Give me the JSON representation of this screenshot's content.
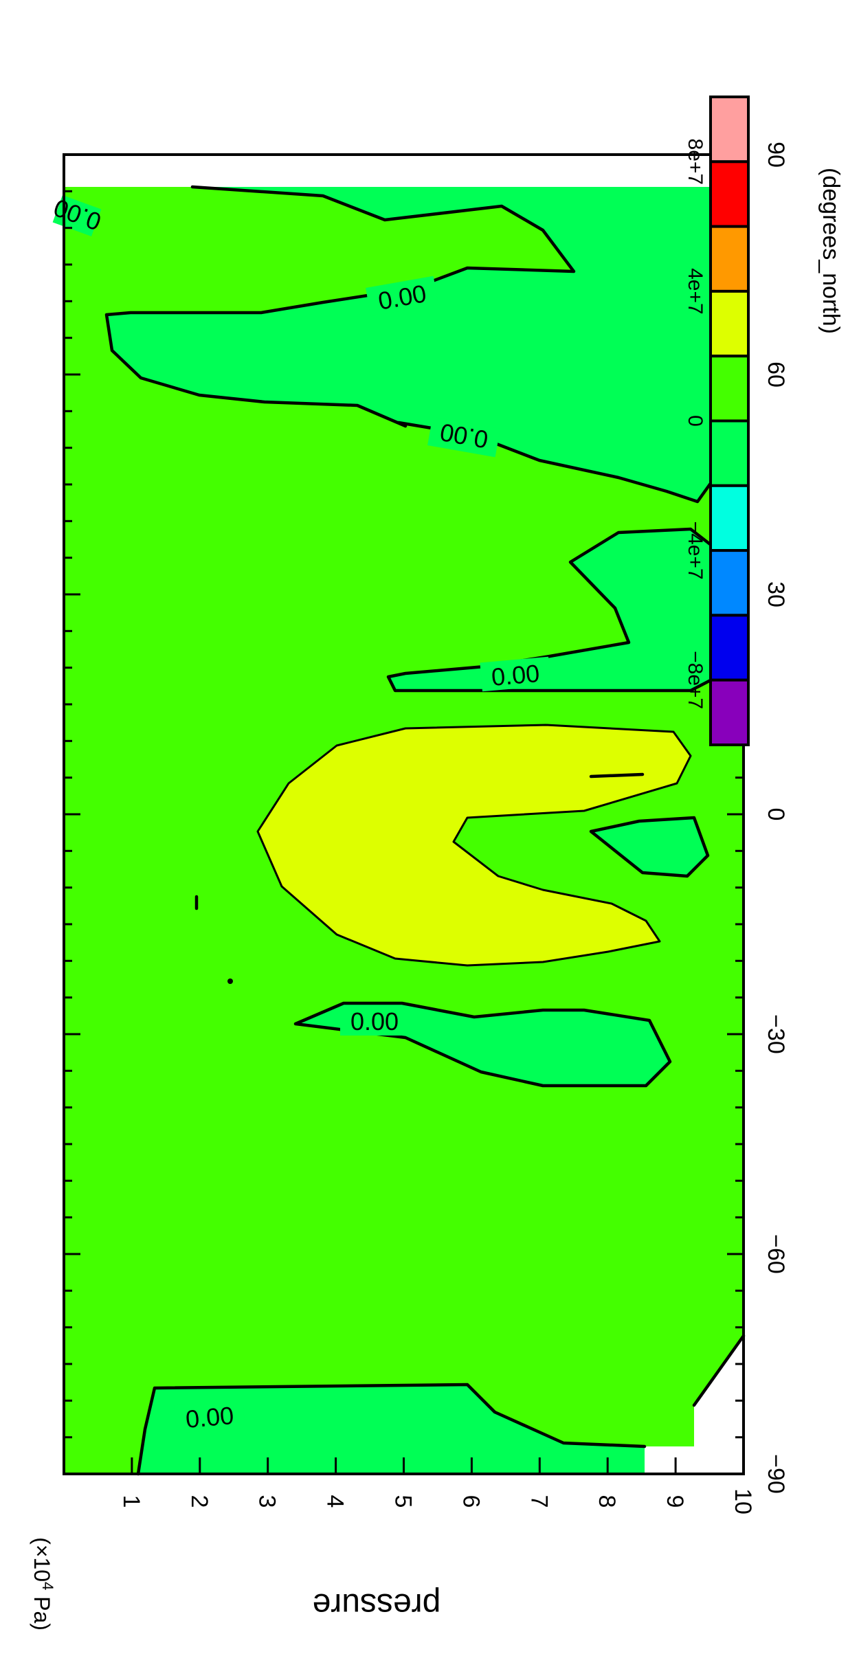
{
  "chart_data": {
    "type": "heatmap",
    "subtype": "filled-contour",
    "orientation": "rotated-90",
    "x_axis": {
      "label": "(degrees_north)",
      "ticks": [
        "−90",
        "−60",
        "−30",
        "0",
        "30",
        "60",
        "90"
      ],
      "range": [
        -90,
        90
      ]
    },
    "y_axis": {
      "label": "pressure",
      "unit_label": "(×10",
      "unit_exp": "4",
      "unit_tail": " Pa)",
      "ticks": [
        "1",
        "2",
        "3",
        "4",
        "5",
        "6",
        "7",
        "8",
        "9",
        "10"
      ],
      "range": [
        0,
        10
      ]
    },
    "colorbar": {
      "colors": [
        "#ff9f9f",
        "#ff0000",
        "#ff9900",
        "#ddff00",
        "#44ff00",
        "#00ff55",
        "#00ffe0",
        "#0088ff",
        "#0000ee",
        "#8800bb"
      ],
      "tick_labels": [
        "8e+7",
        "4e+7",
        "0",
        "−4e+7",
        "−8e+7"
      ]
    },
    "contour_labels": [
      "0.00",
      "0.00",
      "0.00",
      "0.00",
      "0.00",
      "0.00"
    ],
    "background_level": "0 to 2e+7 (green)",
    "regions": [
      {
        "level": "2e+7 to 4e+7",
        "color": "#ddff00",
        "lat_range": [
          -17,
          15
        ],
        "p_range": [
          3,
          9.5
        ]
      },
      {
        "level": "-2e+7 to 0",
        "color": "#00ff55",
        "lat_range": [
          -34,
          -24
        ],
        "p_range": [
          3.5,
          9
        ]
      },
      {
        "level": "-2e+7 to 0",
        "color": "#00ff55",
        "lat_range": [
          -85,
          -77
        ],
        "p_range": [
          1,
          7
        ]
      },
      {
        "level": "-2e+7 to 0",
        "color": "#00ff55",
        "lat_range": [
          19,
          40
        ],
        "p_range": [
          6,
          10
        ]
      },
      {
        "level": "-2e+7 to 0",
        "color": "#00ff55",
        "lat_range": [
          45,
          85
        ],
        "p_range": [
          0,
          9.5
        ]
      },
      {
        "level": "-2e+7 to 0",
        "color": "#00ff55",
        "lat_range": [
          -5,
          3
        ],
        "p_range": [
          7.5,
          9.3
        ]
      }
    ]
  }
}
